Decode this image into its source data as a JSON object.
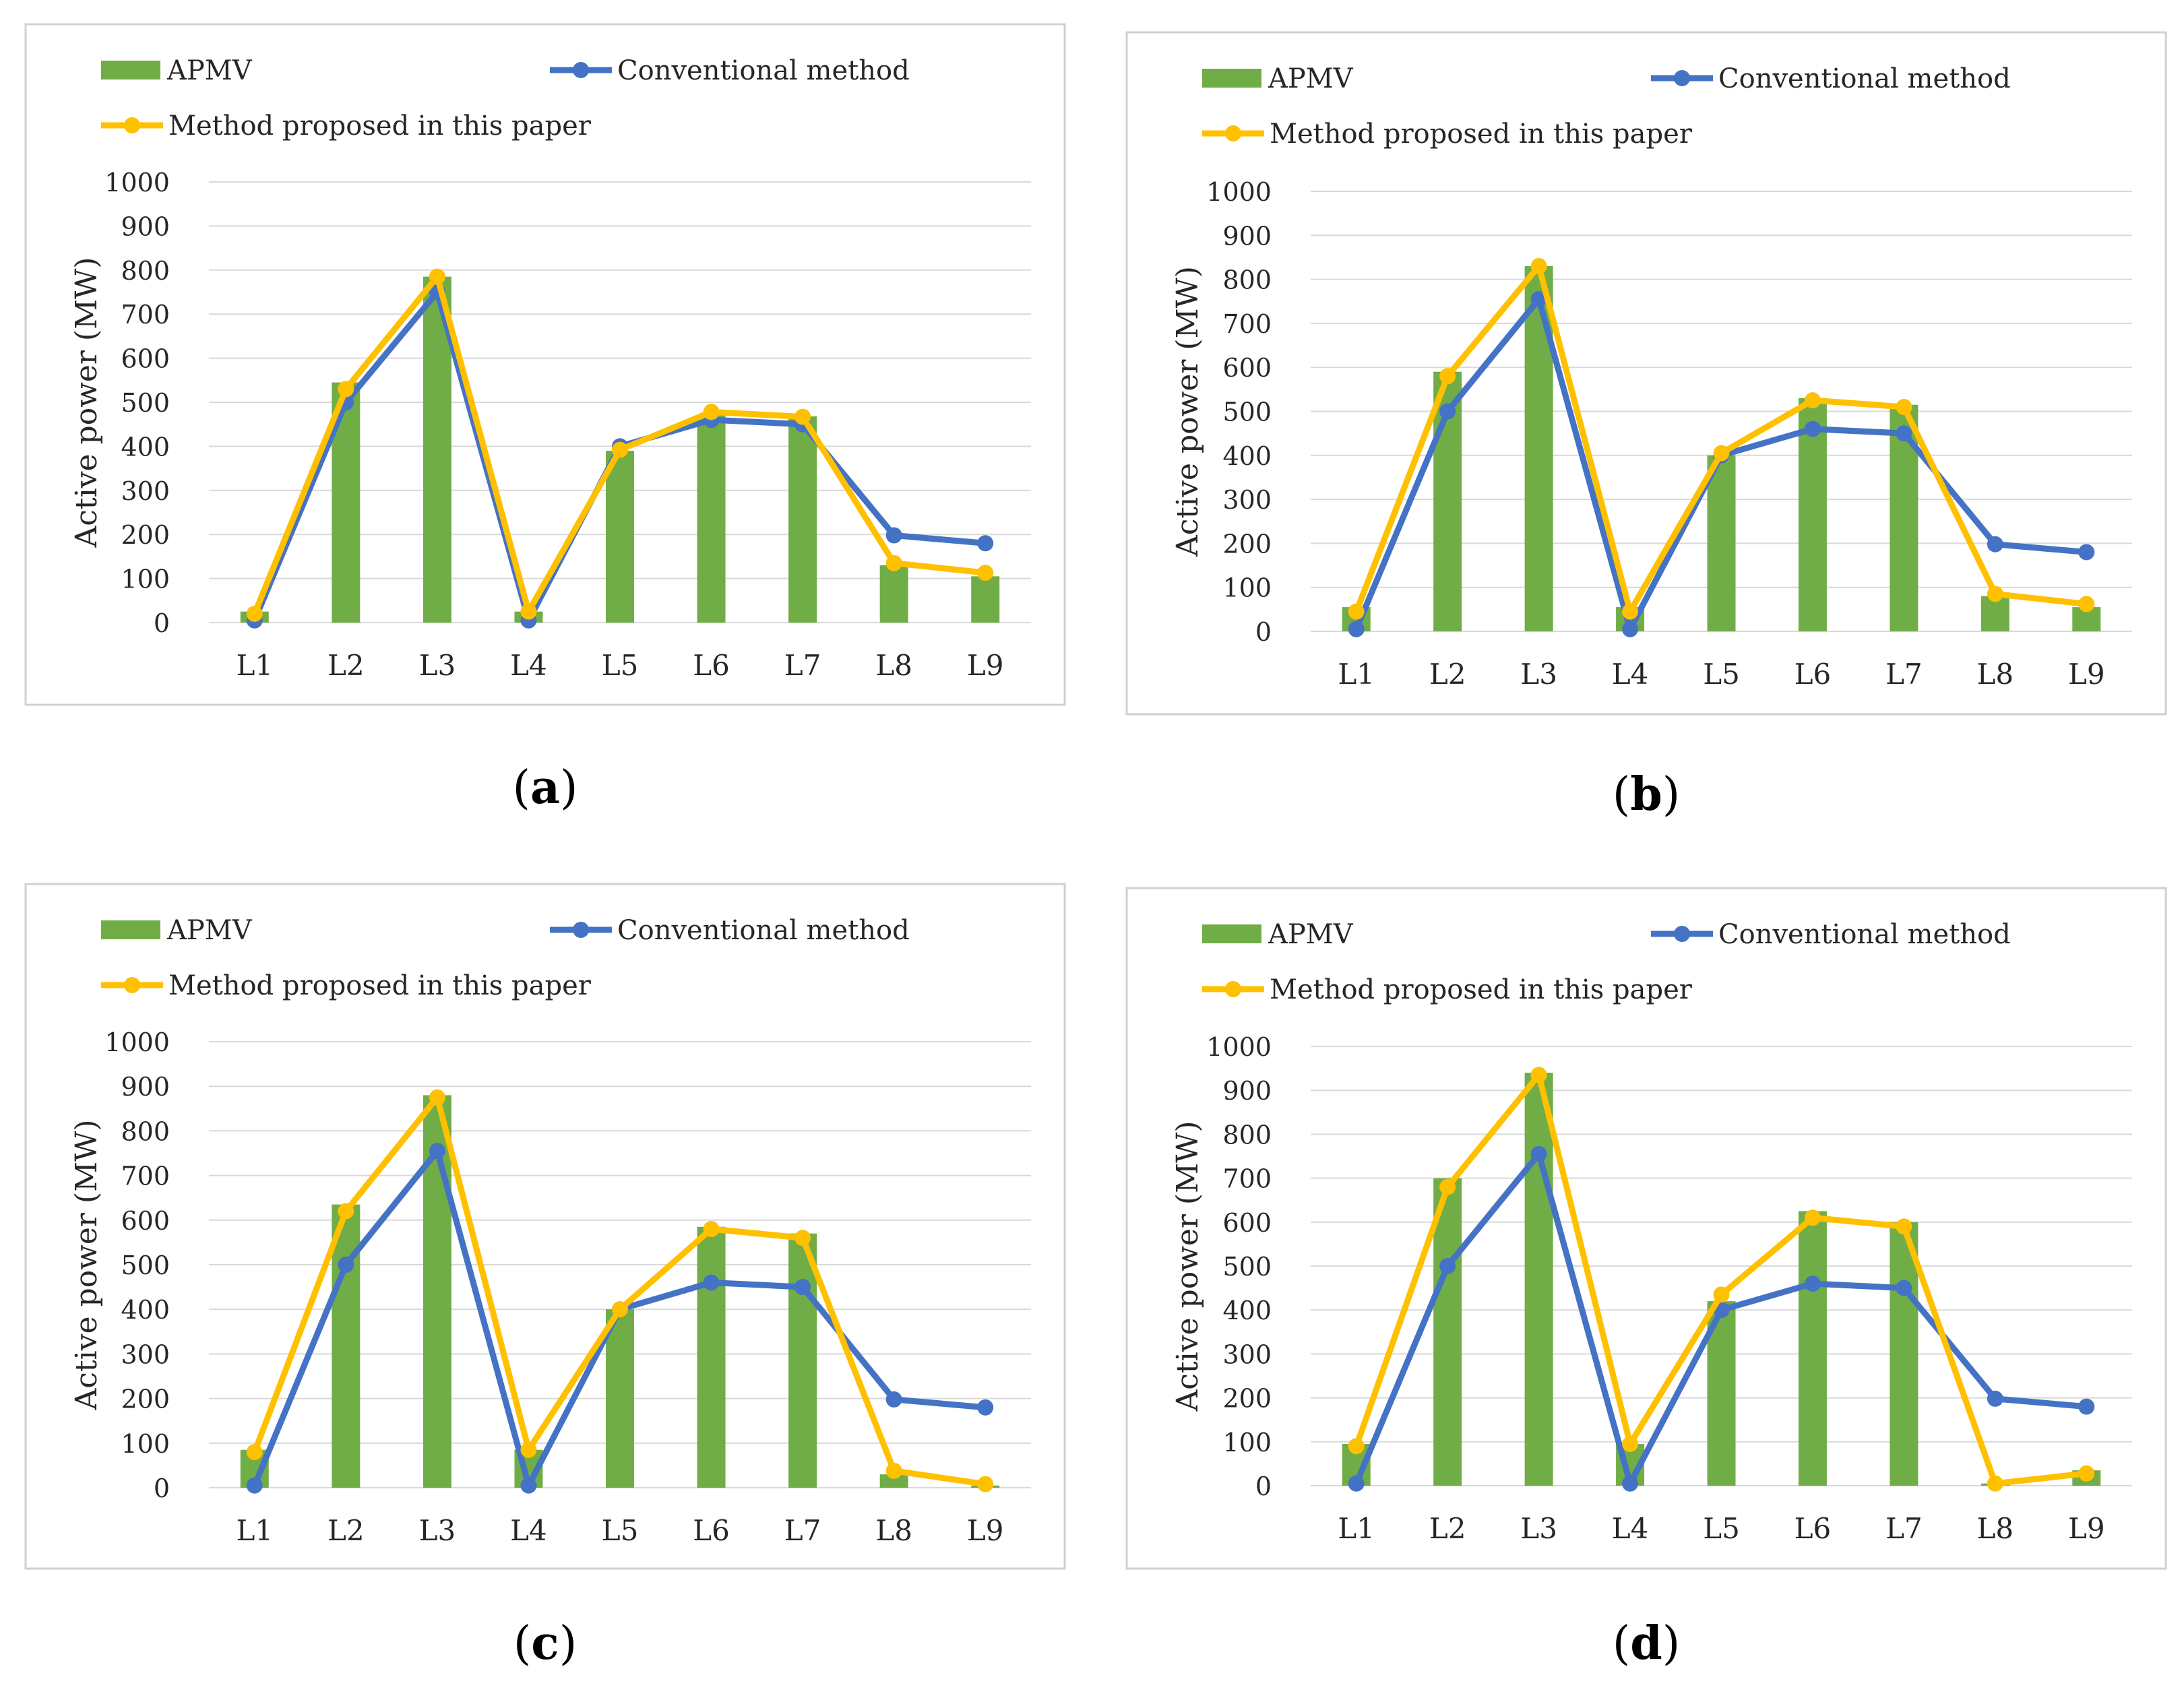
{
  "colors": {
    "apmv": "#70AD47",
    "conventional": "#4472C4",
    "proposed": "#FFC000",
    "grid": "#D9D9D9",
    "frame": "#D0D0D0",
    "text": "#262626"
  },
  "legend": {
    "apmv": "APMV",
    "conventional": "Conventional method",
    "proposed": "Method proposed in this paper"
  },
  "chart_data": [
    {
      "type": "bar",
      "panel_label": "a",
      "ylabel": "Active power (MW)",
      "xlabel": "",
      "ylim": [
        0,
        1000
      ],
      "yticks": [
        "0",
        "100",
        "200",
        "300",
        "400",
        "500",
        "600",
        "700",
        "800",
        "900",
        "1000"
      ],
      "categories": [
        "L1",
        "L2",
        "L3",
        "L4",
        "L5",
        "L6",
        "L7",
        "L8",
        "L9"
      ],
      "series": [
        {
          "name": "APMV",
          "kind": "bar",
          "values": [
            25,
            545,
            785,
            25,
            390,
            470,
            468,
            130,
            105
          ]
        },
        {
          "name": "Conventional method",
          "kind": "line",
          "values": [
            5,
            500,
            750,
            5,
            400,
            460,
            450,
            198,
            180
          ]
        },
        {
          "name": "Method proposed in this paper",
          "kind": "line",
          "values": [
            20,
            530,
            785,
            25,
            392,
            478,
            467,
            135,
            113
          ]
        }
      ]
    },
    {
      "type": "bar",
      "panel_label": "b",
      "ylabel": "Active power (MW)",
      "xlabel": "",
      "ylim": [
        0,
        1000
      ],
      "yticks": [
        "0",
        "100",
        "200",
        "300",
        "400",
        "500",
        "600",
        "700",
        "800",
        "900",
        "1000"
      ],
      "categories": [
        "L1",
        "L2",
        "L3",
        "L4",
        "L5",
        "L6",
        "L7",
        "L8",
        "L9"
      ],
      "series": [
        {
          "name": "APMV",
          "kind": "bar",
          "values": [
            55,
            590,
            830,
            55,
            400,
            530,
            515,
            80,
            55
          ]
        },
        {
          "name": "Conventional method",
          "kind": "line",
          "values": [
            5,
            500,
            755,
            5,
            400,
            460,
            450,
            198,
            180
          ]
        },
        {
          "name": "Method proposed in this paper",
          "kind": "line",
          "values": [
            45,
            580,
            830,
            45,
            405,
            525,
            510,
            85,
            62
          ]
        }
      ]
    },
    {
      "type": "bar",
      "panel_label": "c",
      "ylabel": "Active power (MW)",
      "xlabel": "",
      "ylim": [
        0,
        1000
      ],
      "yticks": [
        "0",
        "100",
        "200",
        "300",
        "400",
        "500",
        "600",
        "700",
        "800",
        "900",
        "1000"
      ],
      "categories": [
        "L1",
        "L2",
        "L3",
        "L4",
        "L5",
        "L6",
        "L7",
        "L8",
        "L9"
      ],
      "series": [
        {
          "name": "APMV",
          "kind": "bar",
          "values": [
            85,
            635,
            880,
            85,
            400,
            585,
            570,
            30,
            5
          ]
        },
        {
          "name": "Conventional method",
          "kind": "line",
          "values": [
            5,
            500,
            755,
            5,
            400,
            460,
            450,
            198,
            180
          ]
        },
        {
          "name": "Method proposed in this paper",
          "kind": "line",
          "values": [
            80,
            620,
            875,
            85,
            400,
            580,
            560,
            38,
            8
          ]
        }
      ]
    },
    {
      "type": "bar",
      "panel_label": "d",
      "ylabel": "Active power (MW)",
      "xlabel": "",
      "ylim": [
        0,
        1000
      ],
      "yticks": [
        "0",
        "100",
        "200",
        "300",
        "400",
        "500",
        "600",
        "700",
        "800",
        "900",
        "1000"
      ],
      "categories": [
        "L1",
        "L2",
        "L3",
        "L4",
        "L5",
        "L6",
        "L7",
        "L8",
        "L9"
      ],
      "series": [
        {
          "name": "APMV",
          "kind": "bar",
          "values": [
            95,
            700,
            940,
            95,
            420,
            625,
            600,
            5,
            35
          ]
        },
        {
          "name": "Conventional method",
          "kind": "line",
          "values": [
            5,
            500,
            755,
            5,
            400,
            460,
            450,
            198,
            180
          ]
        },
        {
          "name": "Method proposed in this paper",
          "kind": "line",
          "values": [
            90,
            680,
            935,
            95,
            435,
            610,
            590,
            5,
            28
          ]
        }
      ]
    }
  ]
}
